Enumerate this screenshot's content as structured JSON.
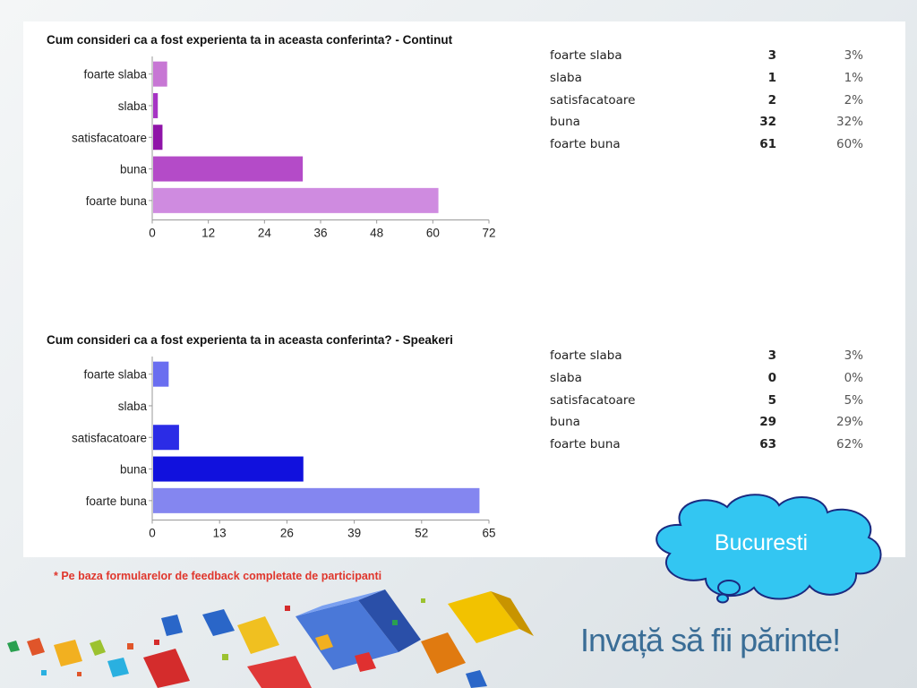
{
  "chart_data": [
    {
      "type": "bar",
      "orientation": "horizontal",
      "title": "Cum consideri ca a fost experienta ta in aceasta conferinta? - Continut",
      "categories": [
        "foarte slaba",
        "slaba",
        "satisfacatoare",
        "buna",
        "foarte buna"
      ],
      "values": [
        3,
        1,
        2,
        32,
        61
      ],
      "percentages": [
        "3%",
        "1%",
        "2%",
        "32%",
        "60%"
      ],
      "colors": [
        "#c777d4",
        "#a634c4",
        "#8f14a8",
        "#b44bc8",
        "#cf8be0"
      ],
      "xticks": [
        "0",
        "12",
        "24",
        "36",
        "48",
        "60",
        "72"
      ],
      "xlim": [
        0,
        72
      ],
      "grid": false,
      "legend": "table-right"
    },
    {
      "type": "bar",
      "orientation": "horizontal",
      "title": "Cum consideri ca a fost experienta ta in aceasta conferinta? - Speakeri",
      "categories": [
        "foarte slaba",
        "slaba",
        "satisfacatoare",
        "buna",
        "foarte buna"
      ],
      "values": [
        3,
        0,
        5,
        29,
        63
      ],
      "percentages": [
        "3%",
        "0%",
        "5%",
        "29%",
        "62%"
      ],
      "colors": [
        "#6a6ef0",
        "#6a6ef0",
        "#2b2ce6",
        "#1111dd",
        "#8486f0"
      ],
      "xticks": [
        "0",
        "13",
        "26",
        "39",
        "52",
        "65"
      ],
      "xlim": [
        0,
        65
      ],
      "grid": false,
      "legend": "table-right"
    }
  ],
  "footnote": "* Pe baza formularelor de feedback completate de participanti",
  "cloud_label": "Bucuresti",
  "slogan": "Invață să fii părinte!",
  "colors": {
    "footnote": "#e0362c",
    "cloud_fill": "#33c6f2",
    "slogan": "#3a6d96"
  }
}
